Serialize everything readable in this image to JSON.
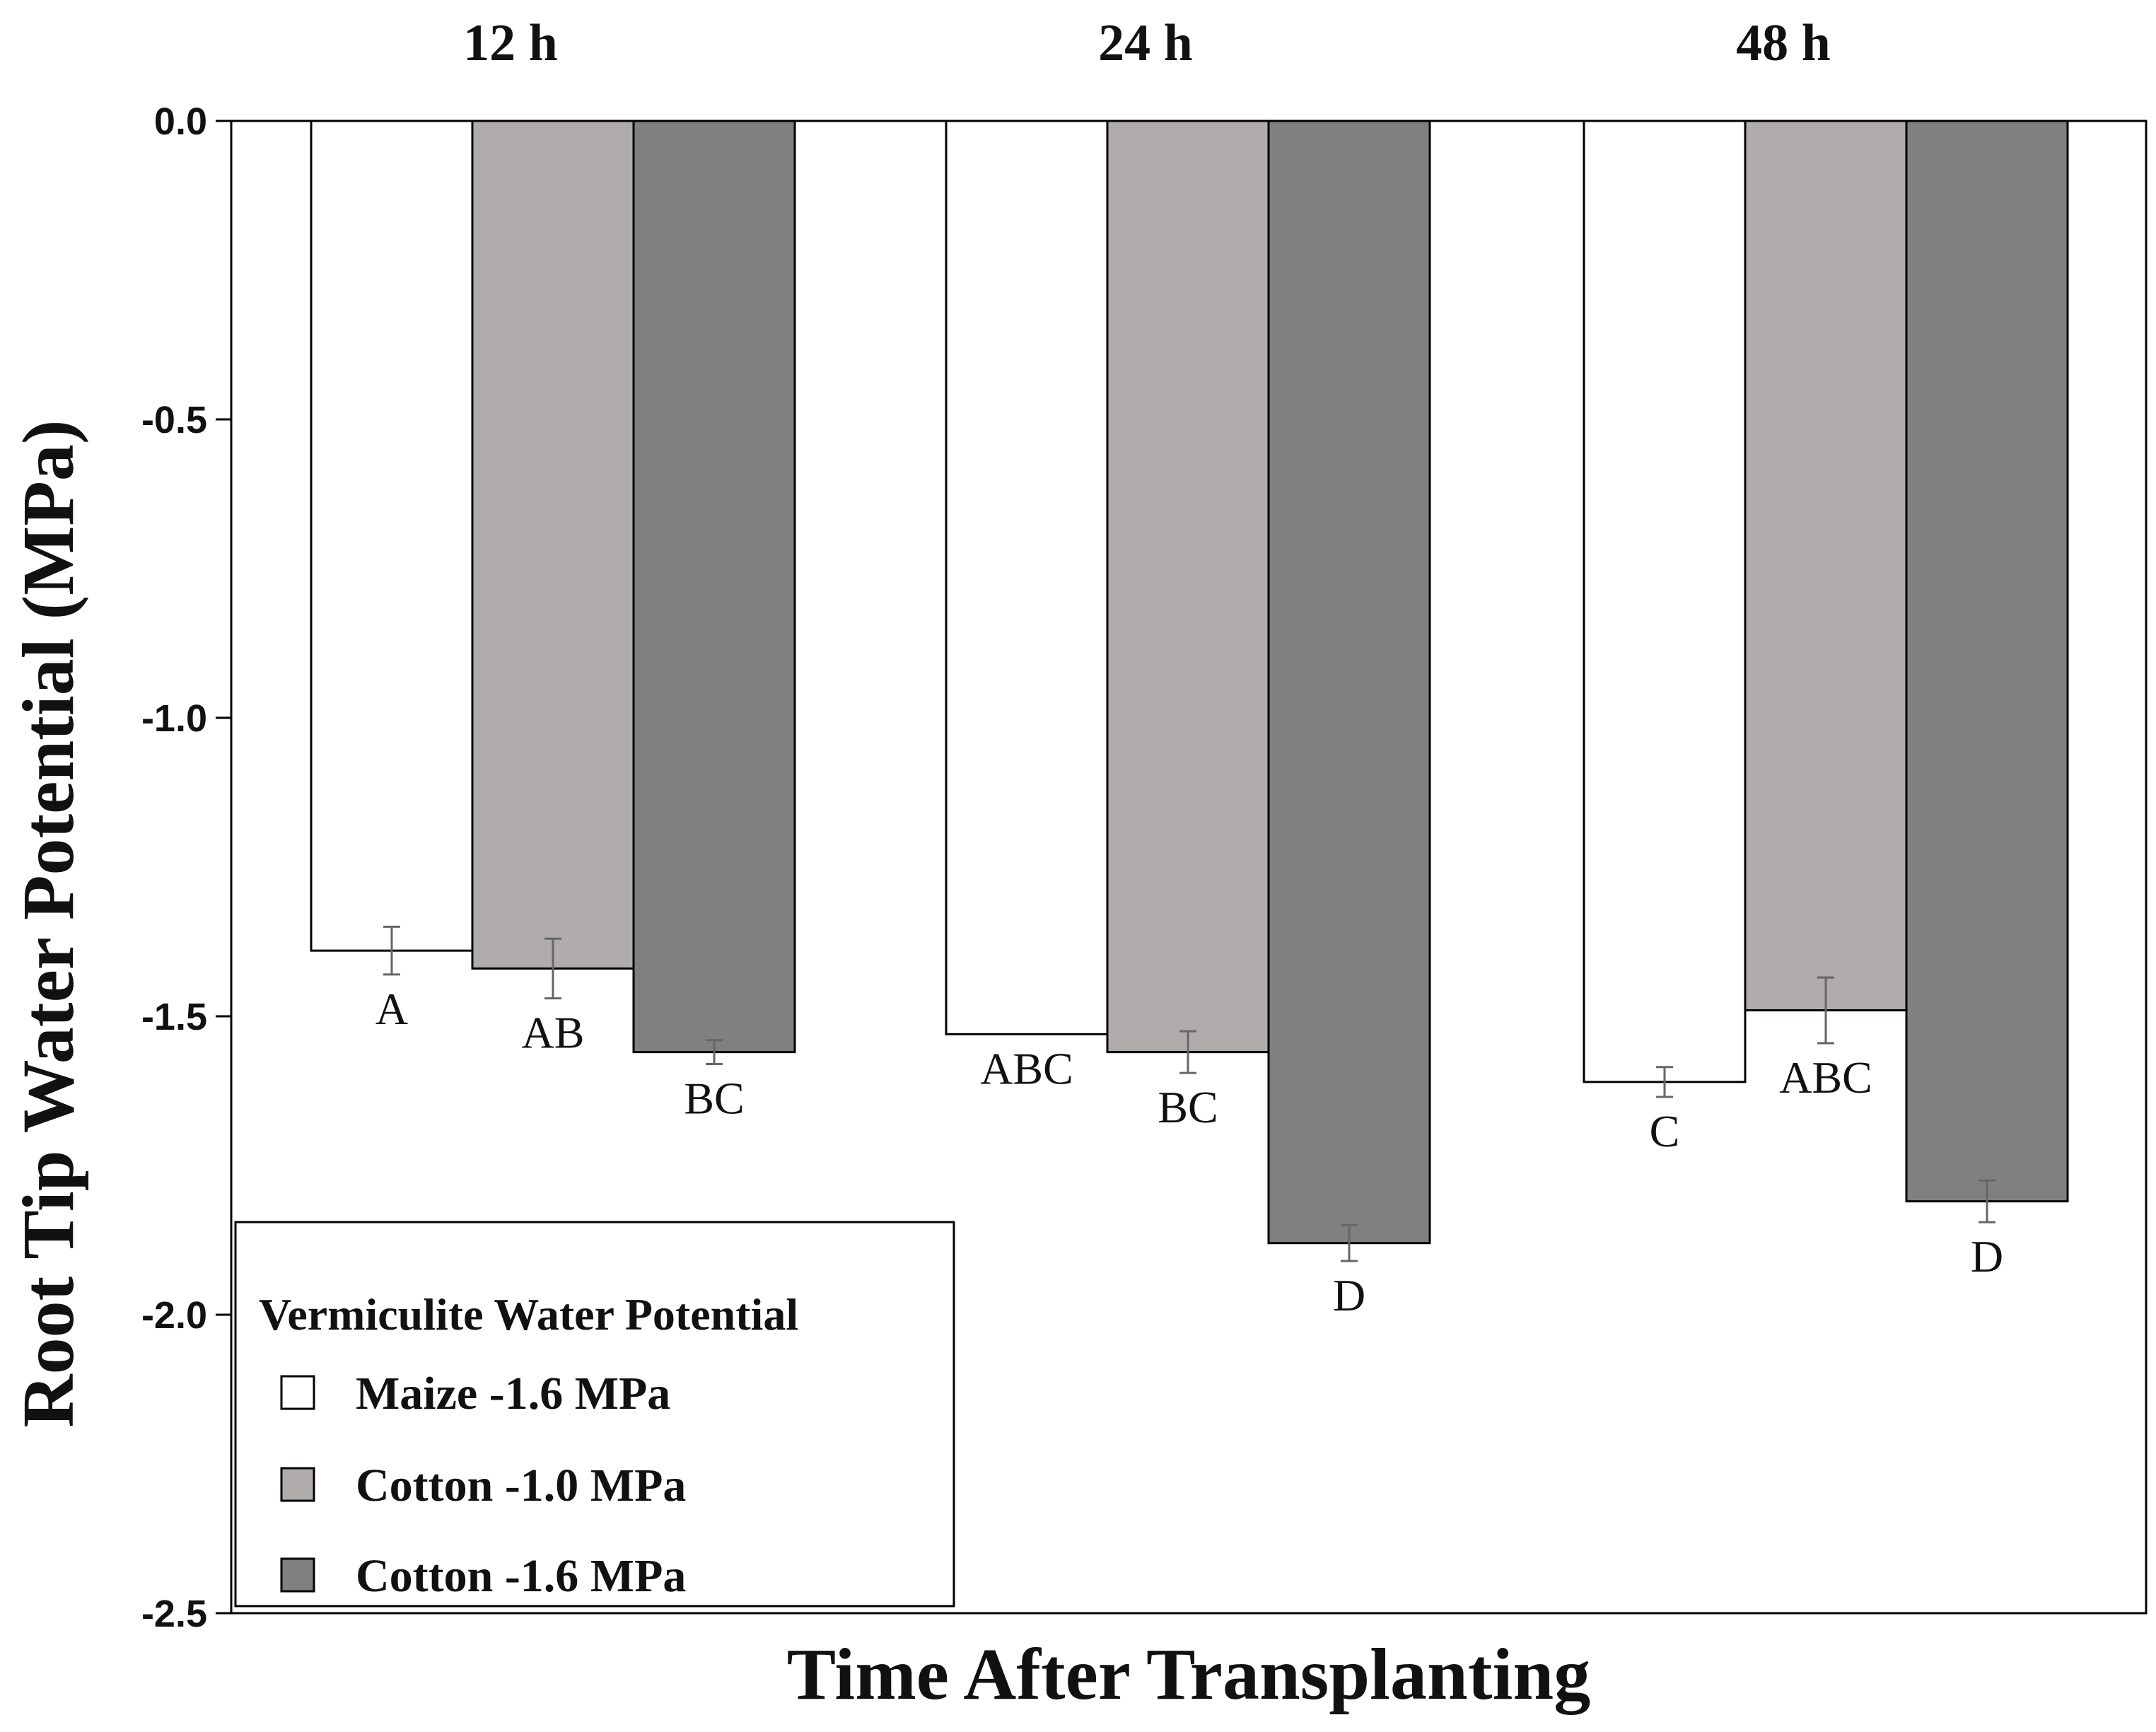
{
  "chart_data": {
    "type": "bar",
    "title": "",
    "xlabel": "Time After Transplanting",
    "ylabel": "Root Tip Water Potential (MPa)",
    "ylim": [
      -2.5,
      0.0
    ],
    "yticks": [
      0.0,
      -0.5,
      -1.0,
      -1.5,
      -2.0,
      -2.5
    ],
    "ytick_labels": [
      "0.0",
      "-0.5",
      "-1.0",
      "-1.5",
      "-2.0",
      "-2.5"
    ],
    "categories": [
      "12 h",
      "24 h",
      "48 h"
    ],
    "category_label_position": "top",
    "grid": false,
    "series": [
      {
        "name": "Maize -1.6 MPa",
        "color": "#ffffff",
        "values": [
          -1.39,
          -1.53,
          -1.61
        ],
        "errors": [
          0.04,
          0.0,
          0.025
        ],
        "significance": [
          "A",
          "ABC",
          "C"
        ]
      },
      {
        "name": "Cotton -1.0 MPa",
        "color": "#b0acab",
        "values": [
          -1.42,
          -1.56,
          -1.49
        ],
        "errors": [
          0.05,
          0.035,
          0.055
        ],
        "significance": [
          "AB",
          "BC",
          "ABC"
        ]
      },
      {
        "name": "Cotton -1.6 MPa",
        "color": "#808080",
        "values": [
          -1.56,
          -1.88,
          -1.81
        ],
        "errors": [
          0.02,
          0.03,
          0.035
        ],
        "significance": [
          "BC",
          "D",
          "D"
        ]
      }
    ],
    "legend": {
      "title": "Vermiculite Water Potential",
      "placement": "bottom-left"
    }
  }
}
